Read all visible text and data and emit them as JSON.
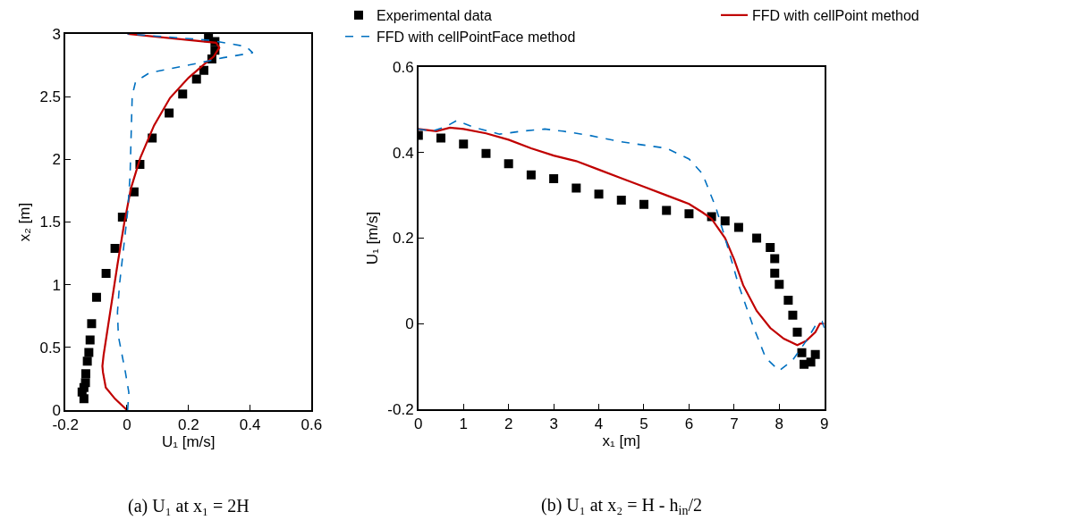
{
  "chart_data": [
    {
      "type": "line",
      "xlabel": "U₁ [m/s]",
      "ylabel": "x₂ [m]",
      "annotations": [
        "(a) U₁ at x₁ = 2H"
      ],
      "xlim": [
        -0.2,
        0.6
      ],
      "xticks": [
        -0.2,
        0,
        0.2,
        0.4,
        0.6
      ],
      "ylim": [
        0,
        3
      ],
      "yticks": [
        0,
        0.5,
        1,
        1.5,
        2,
        2.5,
        3
      ],
      "series": [
        {
          "type": "scatter",
          "marker": "square",
          "color": "#000000",
          "x": [
            0.265,
            0.286,
            0.286,
            0.276,
            0.25,
            0.226,
            0.181,
            0.137,
            0.082,
            0.042,
            0.023,
            -0.015,
            -0.039,
            -0.068,
            -0.099,
            -0.115,
            -0.12,
            -0.124,
            -0.129,
            -0.134,
            -0.135,
            -0.14,
            -0.146,
            -0.14
          ],
          "values": [
            2.97,
            2.94,
            2.87,
            2.8,
            2.71,
            2.64,
            2.52,
            2.37,
            2.17,
            1.96,
            1.74,
            1.54,
            1.29,
            1.09,
            0.9,
            0.69,
            0.56,
            0.46,
            0.39,
            0.29,
            0.22,
            0.18,
            0.145,
            0.09
          ]
        },
        {
          "line_style": "solid",
          "color": "#c00000",
          "x": [
            0,
            -0.039,
            -0.069,
            -0.078,
            -0.08,
            -0.076,
            -0.061,
            -0.031,
            -0.009,
            0.013,
            0.043,
            0.088,
            0.14,
            0.2,
            0.252,
            0.282,
            0.3,
            0.29,
            0.002
          ],
          "values": [
            0,
            0.09,
            0.18,
            0.3,
            0.35,
            0.44,
            0.68,
            1.16,
            1.49,
            1.77,
            2.01,
            2.27,
            2.49,
            2.65,
            2.76,
            2.82,
            2.89,
            2.93,
            3.0
          ]
        },
        {
          "line_style": "dashed",
          "color": "#0070c0",
          "x": [
            0.002,
            0.006,
            -0.005,
            -0.028,
            -0.031,
            -0.024,
            -0.013,
            0.002,
            0.01,
            0.013,
            0.017,
            0.028,
            0.073,
            0.237,
            0.312,
            0.409,
            0.387,
            0.267,
            0.002
          ],
          "values": [
            0,
            0.14,
            0.3,
            0.59,
            0.78,
            1.01,
            1.25,
            1.58,
            1.87,
            2.15,
            2.51,
            2.62,
            2.69,
            2.77,
            2.81,
            2.85,
            2.9,
            2.95,
            3.0
          ]
        }
      ]
    },
    {
      "type": "line",
      "xlabel": "x₁ [m]",
      "ylabel": "U₁ [m/s]",
      "annotations": [
        "(b) U₁ at x₂ = H - h$_{in}$/2"
      ],
      "legend": "top",
      "xlim": [
        0,
        9
      ],
      "xticks": [
        0,
        1,
        2,
        3,
        4,
        5,
        6,
        7,
        8,
        9
      ],
      "ylim": [
        -0.2,
        0.6
      ],
      "yticks": [
        -0.2,
        0,
        0.2,
        0.4,
        0.6
      ],
      "series": [
        {
          "name": "Experimental data",
          "type": "scatter",
          "marker": "square",
          "color": "#000000",
          "x": [
            0,
            0.5,
            1,
            1.5,
            2,
            2.5,
            3,
            3.5,
            4,
            4.5,
            5,
            5.5,
            6,
            6.5,
            6.8,
            7.1,
            7.5,
            7.8,
            7.9,
            7.9,
            8.0,
            8.2,
            8.3,
            8.4,
            8.5,
            8.55,
            8.7,
            8.8
          ],
          "values": [
            0.44,
            0.434,
            0.42,
            0.398,
            0.374,
            0.348,
            0.339,
            0.317,
            0.303,
            0.289,
            0.279,
            0.265,
            0.257,
            0.25,
            0.24,
            0.225,
            0.2,
            0.178,
            0.152,
            0.118,
            0.092,
            0.055,
            0.02,
            -0.02,
            -0.068,
            -0.095,
            -0.09,
            -0.072
          ]
        },
        {
          "name": "FFD with cellPoint method",
          "line_style": "solid",
          "color": "#c00000",
          "x": [
            0,
            0.4,
            0.7,
            1,
            1.5,
            2,
            2.5,
            3,
            3.5,
            4,
            4.5,
            5,
            5.5,
            6,
            6.3,
            6.5,
            6.8,
            7,
            7.2,
            7.5,
            7.8,
            8.1,
            8.4,
            8.6,
            8.8,
            8.9,
            9
          ],
          "values": [
            0.455,
            0.45,
            0.458,
            0.455,
            0.445,
            0.43,
            0.41,
            0.393,
            0.38,
            0.36,
            0.34,
            0.32,
            0.3,
            0.28,
            0.26,
            0.245,
            0.2,
            0.15,
            0.09,
            0.03,
            -0.01,
            -0.035,
            -0.05,
            -0.04,
            -0.02,
            0.0,
            0
          ]
        },
        {
          "name": "FFD with cellPointFace method",
          "line_style": "dashed",
          "color": "#0070c0",
          "x": [
            0,
            0.3,
            0.6,
            0.85,
            1.2,
            1.8,
            2.3,
            2.8,
            3.2,
            3.8,
            4.5,
            5.5,
            6,
            6.3,
            6.6,
            6.8,
            7.1,
            7.4,
            7.7,
            8,
            8.3,
            8.6,
            8.8,
            8.95,
            9
          ],
          "values": [
            0.455,
            0.45,
            0.46,
            0.475,
            0.46,
            0.443,
            0.45,
            0.455,
            0.45,
            0.44,
            0.425,
            0.41,
            0.385,
            0.35,
            0.27,
            0.2,
            0.09,
            0.0,
            -0.08,
            -0.11,
            -0.085,
            -0.04,
            -0.005,
            0.005,
            -0.01
          ]
        }
      ]
    }
  ]
}
